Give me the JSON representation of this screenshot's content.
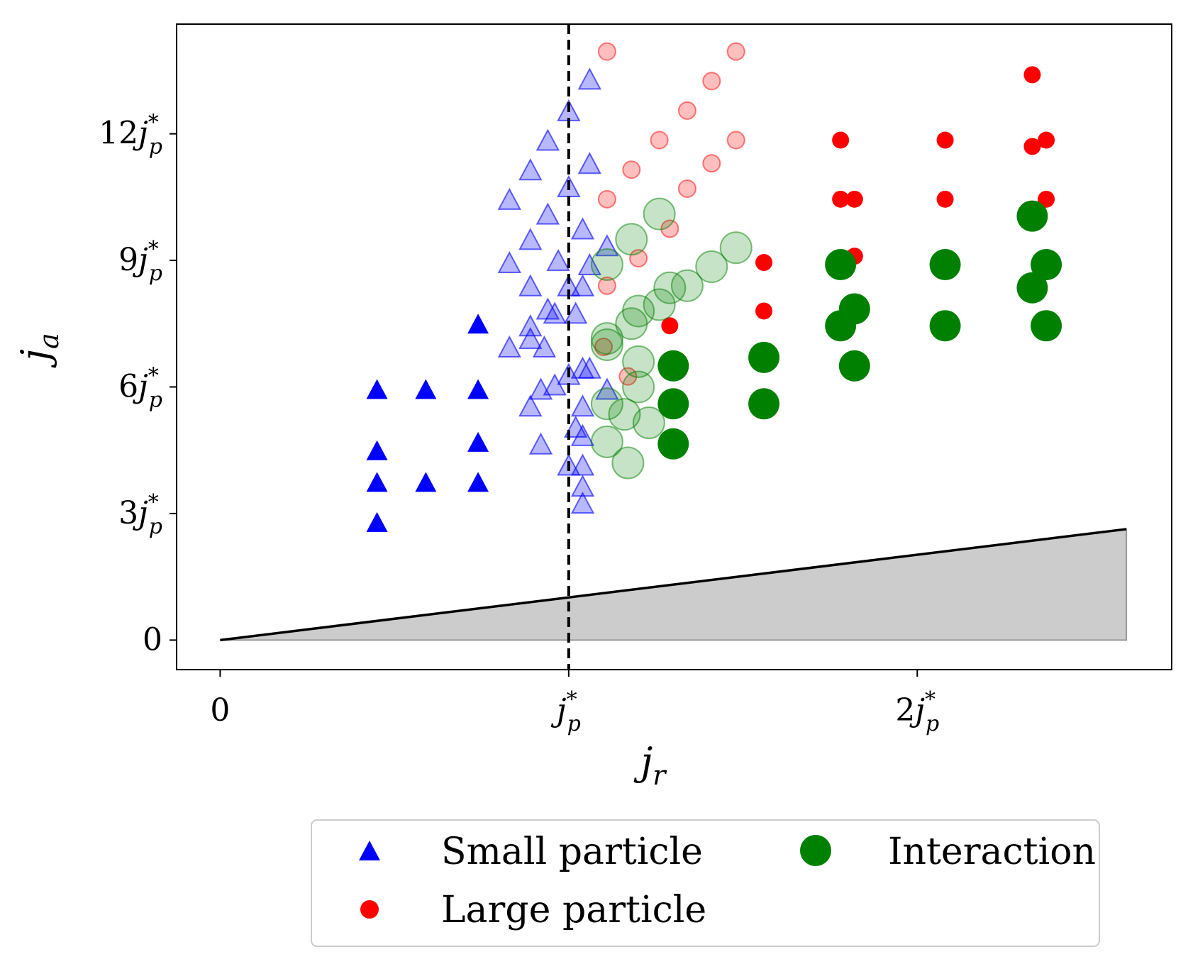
{
  "chart_data": {
    "type": "scatter",
    "xlabel": "j_r",
    "ylabel": "j_a",
    "xlim": [
      -0.125,
      2.73
    ],
    "ylim": [
      -0.7,
      14.6
    ],
    "x_ticks": [
      {
        "value": 0,
        "label": "0"
      },
      {
        "value": 1,
        "label": "j*_p"
      },
      {
        "value": 2,
        "label": "2j*_p"
      }
    ],
    "y_ticks": [
      {
        "value": 0,
        "label": "0"
      },
      {
        "value": 3,
        "label": "3j*_p"
      },
      {
        "value": 6,
        "label": "6j*_p"
      },
      {
        "value": 9,
        "label": "9j*_p"
      },
      {
        "value": 12,
        "label": "12j*_p"
      }
    ],
    "threshold_line": {
      "x": 1,
      "style": "dashed"
    },
    "boundary": {
      "x": [
        0,
        2.6
      ],
      "y": [
        0,
        2.63
      ],
      "fill": "#cccccc"
    },
    "legend": {
      "position": "below",
      "entries": [
        {
          "label": "Small particle",
          "marker": "triangle",
          "color": "#0000ff"
        },
        {
          "label": "Large particle",
          "marker": "circle-small",
          "color": "#ff0000"
        },
        {
          "label": "Interaction",
          "marker": "circle-large",
          "color": "#008000"
        }
      ]
    },
    "series": [
      {
        "name": "Small particle",
        "marker": "triangle",
        "color": "#0000ff",
        "opacity": 1,
        "points": [
          [
            0.45,
            5.95
          ],
          [
            0.45,
            4.5
          ],
          [
            0.45,
            3.75
          ],
          [
            0.45,
            2.8
          ],
          [
            0.59,
            5.95
          ],
          [
            0.59,
            3.75
          ],
          [
            0.74,
            7.5
          ],
          [
            0.74,
            5.95
          ],
          [
            0.74,
            4.7
          ],
          [
            0.74,
            3.75
          ]
        ]
      },
      {
        "name": "",
        "marker": "triangle",
        "color": "#0000ff",
        "opacity": 0.28,
        "points": [
          [
            1.06,
            13.3
          ],
          [
            1.0,
            12.55
          ],
          [
            0.94,
            11.85
          ],
          [
            1.06,
            11.3
          ],
          [
            0.89,
            11.15
          ],
          [
            0.83,
            10.45
          ],
          [
            1.0,
            10.75
          ],
          [
            0.94,
            10.1
          ],
          [
            1.04,
            9.75
          ],
          [
            0.89,
            9.5
          ],
          [
            1.11,
            9.35
          ],
          [
            0.83,
            8.95
          ],
          [
            0.97,
            9.0
          ],
          [
            1.06,
            8.9
          ],
          [
            0.89,
            8.4
          ],
          [
            1.0,
            8.4
          ],
          [
            1.04,
            8.4
          ],
          [
            0.94,
            7.85
          ],
          [
            0.96,
            7.75
          ],
          [
            1.02,
            7.75
          ],
          [
            0.89,
            7.45
          ],
          [
            0.89,
            7.15
          ],
          [
            0.83,
            6.95
          ],
          [
            0.93,
            6.95
          ],
          [
            1.04,
            6.45
          ],
          [
            1.06,
            6.45
          ],
          [
            1.0,
            6.3
          ],
          [
            0.96,
            6.05
          ],
          [
            0.92,
            5.95
          ],
          [
            1.11,
            5.95
          ],
          [
            0.89,
            5.55
          ],
          [
            1.04,
            5.55
          ],
          [
            1.02,
            5.05
          ],
          [
            1.04,
            4.85
          ],
          [
            0.92,
            4.65
          ],
          [
            1.0,
            4.15
          ],
          [
            1.04,
            4.15
          ],
          [
            1.04,
            3.65
          ],
          [
            1.04,
            3.25
          ]
        ]
      },
      {
        "name": "",
        "marker": "circle-small",
        "color": "#ff0000",
        "opacity": 0.25,
        "points": [
          [
            1.11,
            13.95
          ],
          [
            1.48,
            13.95
          ],
          [
            1.41,
            13.25
          ],
          [
            1.34,
            12.55
          ],
          [
            1.26,
            11.85
          ],
          [
            1.48,
            11.85
          ],
          [
            1.18,
            11.15
          ],
          [
            1.41,
            11.3
          ],
          [
            1.34,
            10.7
          ],
          [
            1.11,
            10.45
          ],
          [
            1.29,
            9.75
          ],
          [
            1.2,
            9.05
          ],
          [
            1.11,
            8.4
          ],
          [
            1.1,
            6.95
          ],
          [
            1.17,
            6.25
          ]
        ]
      },
      {
        "name": "Large particle",
        "marker": "circle-small",
        "color": "#ff0000",
        "opacity": 1,
        "points": [
          [
            2.33,
            13.4
          ],
          [
            1.78,
            11.85
          ],
          [
            2.08,
            11.85
          ],
          [
            2.33,
            11.7
          ],
          [
            2.37,
            11.85
          ],
          [
            1.78,
            10.45
          ],
          [
            1.82,
            10.45
          ],
          [
            2.08,
            10.45
          ],
          [
            2.37,
            10.45
          ],
          [
            1.82,
            9.1
          ],
          [
            1.56,
            8.95
          ],
          [
            1.56,
            7.8
          ],
          [
            1.29,
            7.45
          ]
        ]
      },
      {
        "name": "",
        "marker": "circle-large",
        "color": "#008000",
        "opacity": 0.22,
        "points": [
          [
            1.26,
            10.1
          ],
          [
            1.18,
            9.5
          ],
          [
            1.48,
            9.3
          ],
          [
            1.11,
            8.9
          ],
          [
            1.41,
            8.85
          ],
          [
            1.34,
            8.4
          ],
          [
            1.29,
            8.35
          ],
          [
            1.26,
            7.95
          ],
          [
            1.2,
            7.8
          ],
          [
            1.18,
            7.5
          ],
          [
            1.11,
            7.15
          ],
          [
            1.11,
            7.0
          ],
          [
            1.2,
            6.6
          ],
          [
            1.2,
            6.0
          ],
          [
            1.11,
            5.6
          ],
          [
            1.16,
            5.35
          ],
          [
            1.23,
            5.15
          ],
          [
            1.11,
            4.7
          ],
          [
            1.17,
            4.2
          ]
        ]
      },
      {
        "name": "Interaction",
        "marker": "circle-large",
        "color": "#008000",
        "opacity": 1,
        "points": [
          [
            1.78,
            8.9
          ],
          [
            2.08,
            8.9
          ],
          [
            2.37,
            8.9
          ],
          [
            2.33,
            10.05
          ],
          [
            2.33,
            8.35
          ],
          [
            1.82,
            7.85
          ],
          [
            1.78,
            7.45
          ],
          [
            2.08,
            7.45
          ],
          [
            2.37,
            7.45
          ],
          [
            1.56,
            6.7
          ],
          [
            1.82,
            6.5
          ],
          [
            1.3,
            6.5
          ],
          [
            1.3,
            5.6
          ],
          [
            1.56,
            5.6
          ],
          [
            1.3,
            4.65
          ]
        ]
      }
    ]
  }
}
